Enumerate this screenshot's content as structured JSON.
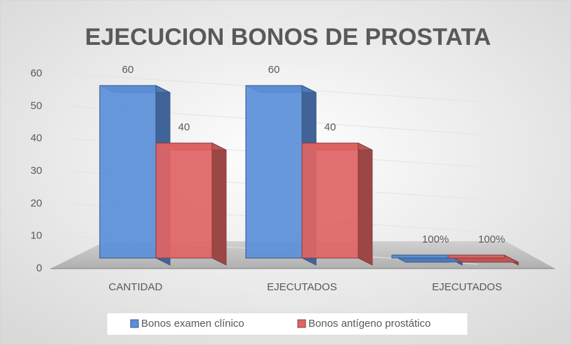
{
  "chart_data": {
    "type": "bar",
    "title": "EJECUCION BONOS DE PROSTATA",
    "categories": [
      "CANTIDAD",
      "EJECUTADOS",
      "EJECUTADOS"
    ],
    "series": [
      {
        "name": "Bonos examen clínico",
        "color": "#5b8fd9",
        "values": [
          60,
          60,
          1
        ],
        "value_labels": [
          "60",
          "60",
          "100%"
        ]
      },
      {
        "name": "Bonos antígeno prostático",
        "color": "#e06464",
        "values": [
          40,
          40,
          1
        ],
        "value_labels": [
          "40",
          "40",
          "100%"
        ]
      }
    ],
    "ylim": [
      0,
      60
    ],
    "yticks": [
      0,
      10,
      20,
      30,
      40,
      50,
      60
    ],
    "grid": true,
    "legend": "bottom"
  }
}
